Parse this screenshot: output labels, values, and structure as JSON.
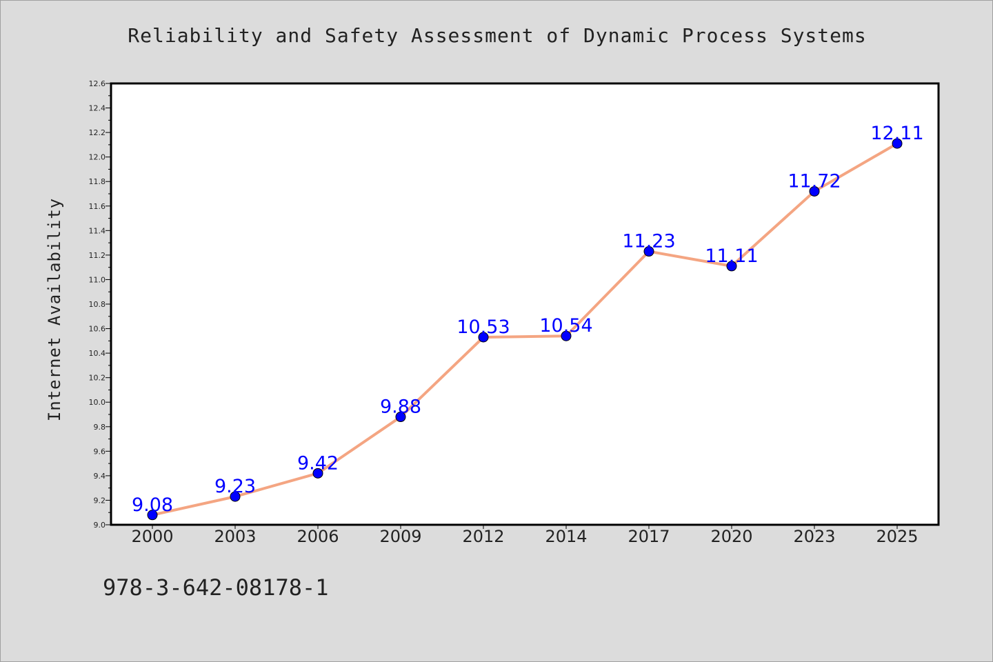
{
  "chart_data": {
    "type": "line",
    "title": "Reliability and Safety Assessment of Dynamic Process Systems",
    "xlabel": "",
    "ylabel": "Internet Availability",
    "categories": [
      "2000",
      "2003",
      "2006",
      "2009",
      "2012",
      "2014",
      "2017",
      "2020",
      "2023",
      "2025"
    ],
    "series": [
      {
        "values": [
          9.08,
          9.23,
          9.42,
          9.88,
          10.53,
          10.54,
          11.23,
          11.11,
          11.72,
          12.11
        ],
        "labels": [
          "9.08",
          "9.23",
          "9.42",
          "9.88",
          "10.53",
          "10.54",
          "11.23",
          "11.11",
          "11.72",
          "12.11"
        ],
        "line_color": "#f4a582",
        "marker_color": "#0000ff"
      }
    ],
    "ylim": [
      9.0,
      12.6
    ],
    "yticks": [
      "9.0",
      "9.2",
      "9.4",
      "9.6",
      "9.8",
      "10.0",
      "10.2",
      "10.4",
      "10.6",
      "10.8",
      "11.0",
      "11.2",
      "11.4",
      "11.6",
      "11.8",
      "12.0",
      "12.2",
      "12.4",
      "12.6"
    ],
    "grid": false,
    "legend": "none",
    "background": "#dcdcdc",
    "plot_background": "#ffffff"
  },
  "footer": {
    "isbn": "978-3-642-08178-1"
  }
}
